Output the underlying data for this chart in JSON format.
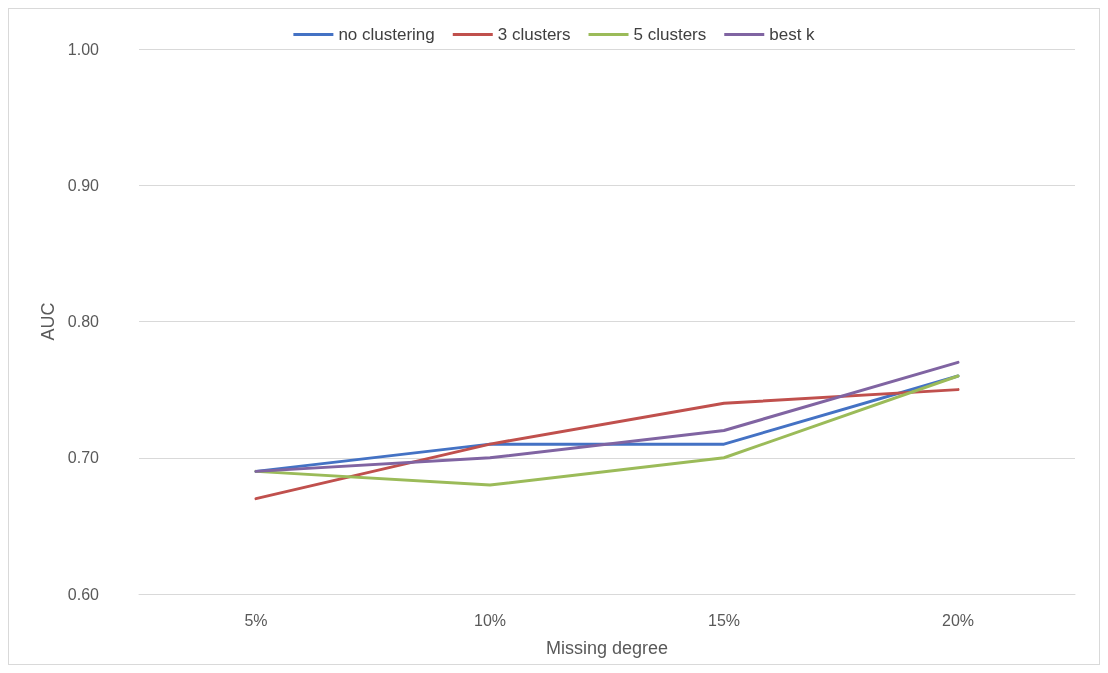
{
  "chart_data": {
    "type": "line",
    "xlabel": "Missing degree",
    "ylabel": "AUC",
    "categories": [
      "5%",
      "10%",
      "15%",
      "20%"
    ],
    "series": [
      {
        "name": "no clustering",
        "color": "#4472c4",
        "values": [
          0.69,
          0.71,
          0.71,
          0.76
        ]
      },
      {
        "name": "3 clusters",
        "color": "#c0504d",
        "values": [
          0.67,
          0.71,
          0.74,
          0.75
        ]
      },
      {
        "name": "5 clusters",
        "color": "#9bbb59",
        "values": [
          0.69,
          0.68,
          0.7,
          0.76
        ]
      },
      {
        "name": "best k",
        "color": "#8064a2",
        "values": [
          0.69,
          0.7,
          0.72,
          0.77
        ]
      }
    ],
    "ylim": [
      0.6,
      1.0
    ],
    "yticks": [
      {
        "value": 0.6,
        "label": "0.60"
      },
      {
        "value": 0.7,
        "label": "0.70"
      },
      {
        "value": 0.8,
        "label": "0.80"
      },
      {
        "value": 0.9,
        "label": "0.90"
      },
      {
        "value": 1.0,
        "label": "1.00"
      }
    ],
    "grid": "y",
    "legend": "top",
    "line_style": "solid"
  }
}
